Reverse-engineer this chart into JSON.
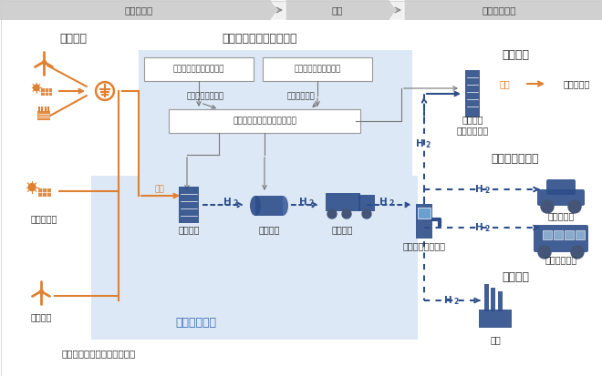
{
  "header_labels": [
    "製造・貯蔵",
    "輸送",
    "供給・利活用"
  ],
  "orange": "#e08030",
  "blue_dark": "#2d4e8a",
  "blue_light": "#dce8f5",
  "blue_mid": "#3a6db5",
  "gray_header": "#d0d0d0",
  "gray_line": "#777777",
  "text_dark": "#333333",
  "white": "#ffffff",
  "label_grid": "系統電力",
  "label_h2sys": "水素エネルギーシステム",
  "label_hatsuden": "発電用途",
  "label_mobility": "モビリティ用途",
  "label_sangyo": "産業用途",
  "label_renewable": "再生可能エネルギー由来電力",
  "label_solar": "太陽光発電",
  "label_wind_b": "風力発電",
  "label_jissho": "実証システム",
  "label_densei": "電力系統側制御システム",
  "label_suisoyosoku_sys": "水素需要予測システム",
  "label_jukyuu": "需給バランス調整",
  "label_suisoyosoku": "水素需要予測",
  "label_unyo": "水素エネルギー運用システム",
  "label_seizou": "水素製造",
  "label_chozou": "水素貯蔵",
  "label_yuso": "水素輸送",
  "label_station": "水素ステーション",
  "label_hatsudenchi": "水素発電\n（燃料電池）",
  "label_shijo": "電力市場等",
  "label_denryoku": "電力",
  "label_car": "燃料電池車",
  "label_bus": "燃料電池バス",
  "label_factory": "工場"
}
